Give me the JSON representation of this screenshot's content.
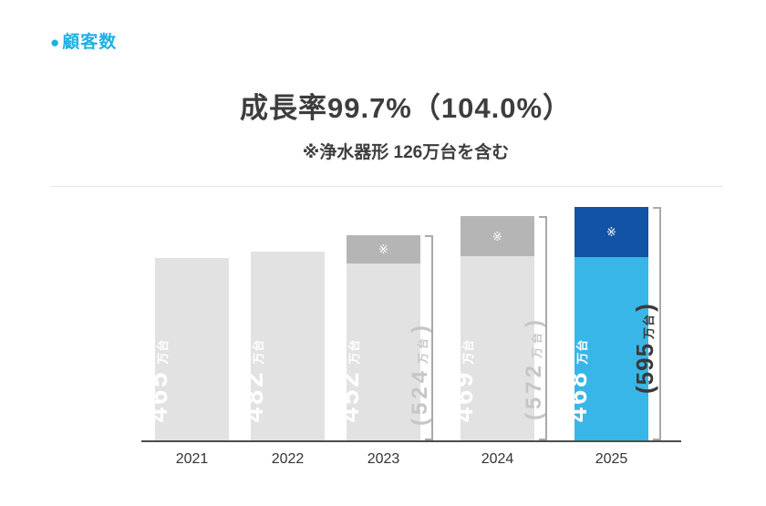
{
  "page": {
    "header": {
      "bullet": "●",
      "label": "顧客数"
    },
    "title": "成長率99.7%（104.0%）",
    "subtitle": "※浄水器形 126万台を含む"
  },
  "colors": {
    "accent_cyan": "#1db0e6",
    "bar_gray": "#e2e2e2",
    "cap_gray": "#b5b5b5",
    "bar_blue": "#38b6e8",
    "cap_navy": "#1253a5",
    "bracket_line": "#a9a9a9",
    "bracket_label_light": "#c6c6c6",
    "bracket_label_dark": "#3a3a3a",
    "text_dark": "#3d3d3d"
  },
  "chart_data": {
    "type": "bar",
    "title": "成長率99.7%（104.0%）",
    "subtitle": "※浄水器形 126万台を含む",
    "unit": "万台",
    "categories": [
      "2021",
      "2022",
      "2023",
      "2024",
      "2025"
    ],
    "series": [
      {
        "name": "main",
        "values": [
          465,
          482,
          452,
          469,
          468
        ]
      },
      {
        "name": "cap_marked_※",
        "values": [
          0,
          0,
          72,
          103,
          127
        ]
      }
    ],
    "totals": [
      null,
      null,
      524,
      572,
      595
    ],
    "legend": "none",
    "grid": "off",
    "bars": [
      {
        "year": "2021",
        "value": 465,
        "total": null,
        "value_label": {
          "num": "465",
          "unit": "万台"
        },
        "color_main": "#e2e2e2",
        "color_cap": null
      },
      {
        "year": "2022",
        "value": 482,
        "total": null,
        "value_label": {
          "num": "482",
          "unit": "万台"
        },
        "color_main": "#e2e2e2",
        "color_cap": null
      },
      {
        "year": "2023",
        "value": 452,
        "total": 524,
        "cap_mark": "※",
        "value_label": {
          "num": "452",
          "unit": "万台"
        },
        "bracket_label": {
          "open": "(",
          "num": "524",
          "unit": "万台",
          "close": ")"
        },
        "color_main": "#e2e2e2",
        "color_cap": "#b5b5b5"
      },
      {
        "year": "2024",
        "value": 469,
        "total": 572,
        "cap_mark": "※",
        "value_label": {
          "num": "469",
          "unit": "万台"
        },
        "bracket_label": {
          "open": "(",
          "num": "572",
          "unit": "万台",
          "close": ")"
        },
        "color_main": "#e2e2e2",
        "color_cap": "#b5b5b5"
      },
      {
        "year": "2025",
        "value": 468,
        "total": 595,
        "cap_mark": "※",
        "value_label": {
          "num": "468",
          "unit": "万台"
        },
        "bracket_label": {
          "open": "(",
          "num": "595",
          "unit": "万台",
          "close": ")"
        },
        "color_main": "#38b6e8",
        "color_cap": "#1253a5"
      }
    ]
  }
}
